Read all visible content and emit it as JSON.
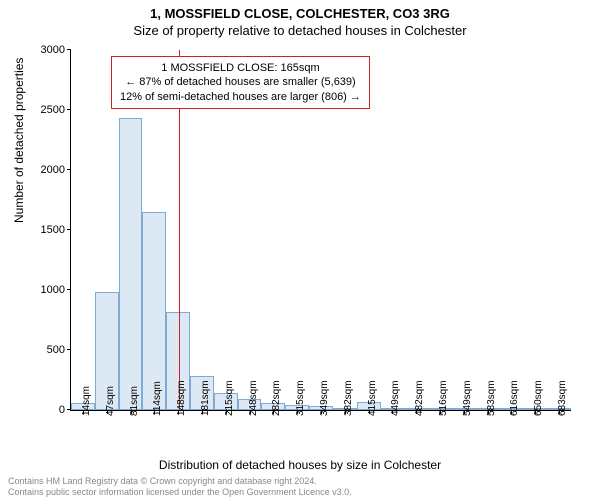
{
  "header": {
    "address_line": "1, MOSSFIELD CLOSE, COLCHESTER, CO3 3RG",
    "subtitle": "Size of property relative to detached houses in Colchester"
  },
  "chart": {
    "type": "histogram",
    "ylabel": "Number of detached properties",
    "xlabel": "Distribution of detached houses by size in Colchester",
    "ylim": [
      0,
      3000
    ],
    "ytick_step": 500,
    "yticks": [
      0,
      500,
      1000,
      1500,
      2000,
      2500,
      3000
    ],
    "xtick_labels": [
      "14sqm",
      "47sqm",
      "81sqm",
      "114sqm",
      "148sqm",
      "181sqm",
      "215sqm",
      "248sqm",
      "282sqm",
      "315sqm",
      "349sqm",
      "382sqm",
      "415sqm",
      "449sqm",
      "482sqm",
      "516sqm",
      "549sqm",
      "583sqm",
      "616sqm",
      "650sqm",
      "683sqm"
    ],
    "values": [
      60,
      980,
      2430,
      1650,
      820,
      280,
      140,
      90,
      55,
      45,
      35,
      15,
      70,
      8,
      5,
      4,
      3,
      2,
      2,
      2,
      1
    ],
    "bar_fill": "#dce8f4",
    "bar_border": "#7faad4",
    "background_color": "#ffffff",
    "reference_line": {
      "index": 4.55,
      "color": "#cc2222"
    }
  },
  "annotation": {
    "line1": "1 MOSSFIELD CLOSE: 165sqm",
    "line2": "← 87% of detached houses are smaller (5,639)",
    "line3": "12% of semi-detached houses are larger (806) →",
    "border_color": "#cc2222"
  },
  "footer": {
    "line1": "Contains HM Land Registry data © Crown copyright and database right 2024.",
    "line2": "Contains public sector information licensed under the Open Government Licence v3.0."
  }
}
